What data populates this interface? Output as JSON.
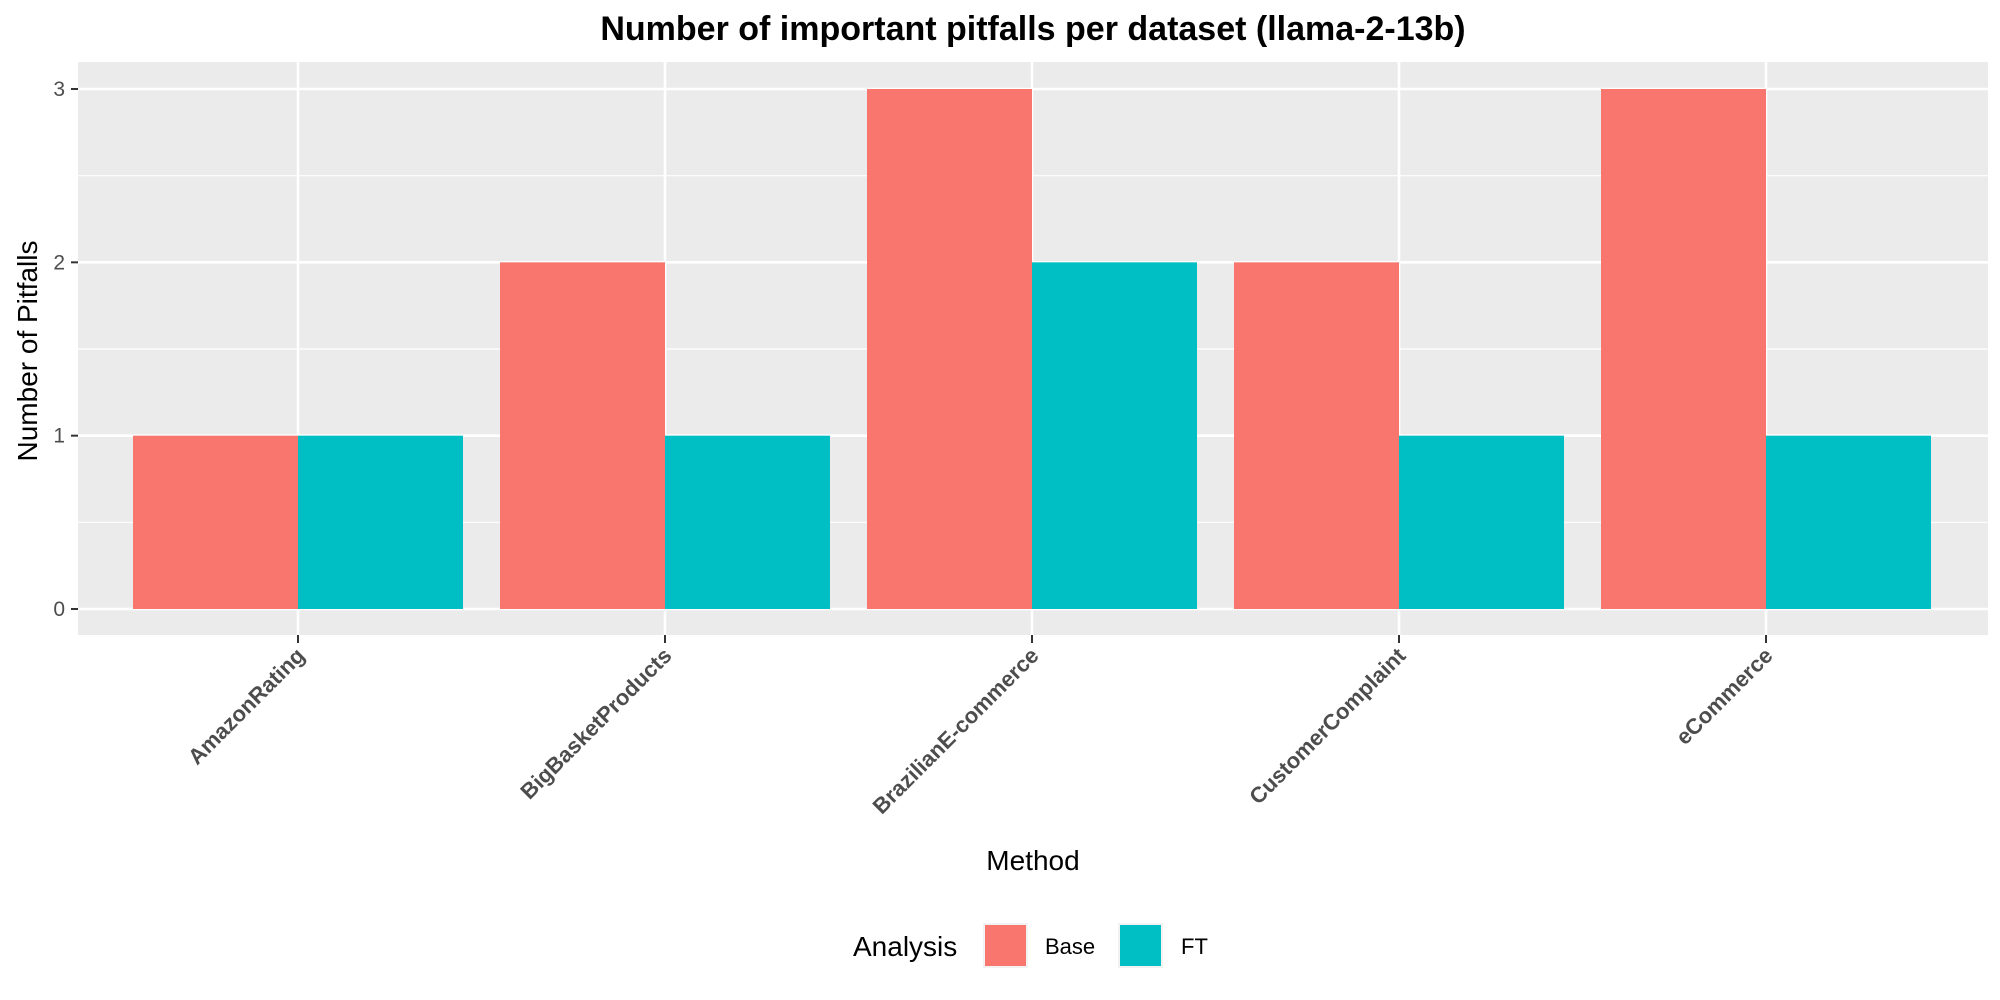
{
  "chart_data": {
    "type": "bar",
    "title": "Number of important pitfalls per dataset (llama-2-13b)",
    "xlabel": "Method",
    "ylabel": "Number of Pitfalls",
    "categories": [
      "AmazonRating",
      "BigBasketProducts",
      "BrazilianE-commerce",
      "CustomerComplaint",
      "eCommerce"
    ],
    "series": [
      {
        "name": "Base",
        "color": "#F8766D",
        "values": [
          1,
          2,
          3,
          2,
          3
        ]
      },
      {
        "name": "FT",
        "color": "#00BFC4",
        "values": [
          1,
          1,
          2,
          1,
          1
        ]
      }
    ],
    "ylim": [
      0,
      3
    ],
    "yticks": [
      "0",
      "1",
      "2",
      "3"
    ],
    "grid": true,
    "panel_background": "#EBEBEB",
    "legend": {
      "title": "Analysis",
      "position": "bottom"
    }
  }
}
